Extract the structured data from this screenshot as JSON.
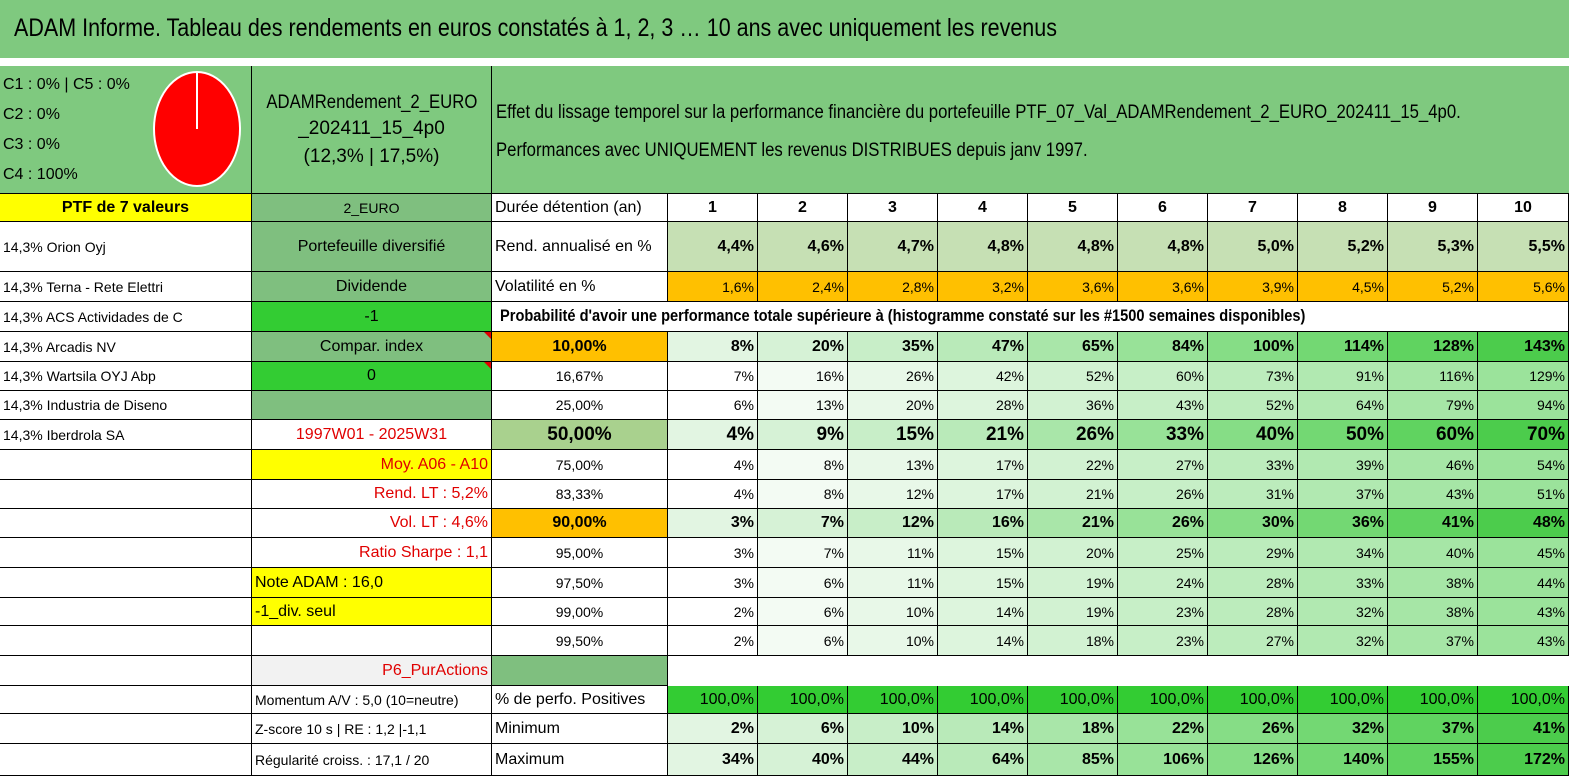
{
  "title": "ADAM Informe. Tableau des rendements en euros constatés à 1, 2, 3 … 10 ans avec uniquement les revenus",
  "pie": {
    "legend": [
      "C1 : 0% | C5 : 0%",
      "C2 : 0%",
      "C3 : 0%",
      "C4 : 100%"
    ],
    "slices": [
      {
        "share": 1.0,
        "color": "#ff0000"
      }
    ]
  },
  "fund": {
    "name_line1": "ADAMRendement_2_EURO",
    "name_line2": "_202411_15_4p0",
    "stats": "(12,3% | 17,5%)"
  },
  "header": {
    "line1": "Effet du lissage temporel sur la performance financière du portefeuille PTF_07_Val_ADAMRendement_2_EURO_202411_15_4p0.",
    "line2": "Performances avec UNIQUEMENT les revenus DISTRIBUES depuis janv 1997."
  },
  "colors": {
    "green_header": "#7fc97f",
    "yellow": "#ffff00",
    "orange": "#ffc000",
    "bright_green": "#33cc33",
    "grey_green": "#7fbf7f",
    "red_text": "#e00000"
  },
  "portfolio_label": "PTF de 7 valeurs",
  "holdings": [
    "14,3% Orion Oyj",
    "14,3% Terna - Rete Elettri",
    "14,3% ACS Actividades de C",
    "14,3% Arcadis NV",
    "14,3% Wartsila OYJ Abp",
    "14,3% Industria de Diseno",
    "14,3% Iberdrola SA"
  ],
  "mid": {
    "code": "2_EURO",
    "type": "Portefeuille diversifié",
    "income": "Dividende",
    "m1": "-1",
    "compar": "Compar. index",
    "zero": "0",
    "period": "1997W01 - 2025W31",
    "moy": "Moy. A06 - A10",
    "rend_lt": "Rend. LT : 5,2%",
    "vol_lt": "Vol. LT : 4,6%",
    "sharpe": "Ratio Sharpe : 1,1",
    "note": "Note ADAM : 16,0",
    "div": "-1_div. seul",
    "pur": "P6_PurActions",
    "momentum": "Momentum A/V : 5,0 (10=neutre)",
    "zscore": "Z-score 10 s | RE : 1,2 |-1,1",
    "regularite": "Régularité croiss. : 17,1 / 20"
  },
  "table": {
    "duration_label": "Durée détention (an)",
    "years": [
      "1",
      "2",
      "3",
      "4",
      "5",
      "6",
      "7",
      "8",
      "9",
      "10"
    ],
    "rend_label": "Rend. annualisé en %",
    "rend": [
      "4,4%",
      "4,6%",
      "4,7%",
      "4,8%",
      "4,8%",
      "4,8%",
      "5,0%",
      "5,2%",
      "5,3%",
      "5,5%"
    ],
    "vol_label": "Volatilité en %",
    "vol": [
      "1,6%",
      "2,4%",
      "2,8%",
      "3,2%",
      "3,6%",
      "3,6%",
      "3,9%",
      "4,5%",
      "5,2%",
      "5,6%"
    ],
    "prob_title": "Probabilité d'avoir une performance totale supérieure à (histogramme constaté sur les #1500 semaines disponibles)",
    "quantiles": [
      {
        "p": "10,00%",
        "vals": [
          "8%",
          "20%",
          "35%",
          "47%",
          "65%",
          "84%",
          "100%",
          "114%",
          "128%",
          "143%"
        ]
      },
      {
        "p": "16,67%",
        "vals": [
          "7%",
          "16%",
          "26%",
          "42%",
          "52%",
          "60%",
          "73%",
          "91%",
          "116%",
          "129%"
        ]
      },
      {
        "p": "25,00%",
        "vals": [
          "6%",
          "13%",
          "20%",
          "28%",
          "36%",
          "43%",
          "52%",
          "64%",
          "79%",
          "94%"
        ]
      },
      {
        "p": "50,00%",
        "vals": [
          "4%",
          "9%",
          "15%",
          "21%",
          "26%",
          "33%",
          "40%",
          "50%",
          "60%",
          "70%"
        ]
      },
      {
        "p": "75,00%",
        "vals": [
          "4%",
          "8%",
          "13%",
          "17%",
          "22%",
          "27%",
          "33%",
          "39%",
          "46%",
          "54%"
        ]
      },
      {
        "p": "83,33%",
        "vals": [
          "4%",
          "8%",
          "12%",
          "17%",
          "21%",
          "26%",
          "31%",
          "37%",
          "43%",
          "51%"
        ]
      },
      {
        "p": "90,00%",
        "vals": [
          "3%",
          "7%",
          "12%",
          "16%",
          "21%",
          "26%",
          "30%",
          "36%",
          "41%",
          "48%"
        ]
      },
      {
        "p": "95,00%",
        "vals": [
          "3%",
          "7%",
          "11%",
          "15%",
          "20%",
          "25%",
          "29%",
          "34%",
          "40%",
          "45%"
        ]
      },
      {
        "p": "97,50%",
        "vals": [
          "3%",
          "6%",
          "11%",
          "15%",
          "19%",
          "24%",
          "28%",
          "33%",
          "38%",
          "44%"
        ]
      },
      {
        "p": "99,00%",
        "vals": [
          "2%",
          "6%",
          "10%",
          "14%",
          "19%",
          "23%",
          "28%",
          "32%",
          "38%",
          "43%"
        ]
      },
      {
        "p": "99,50%",
        "vals": [
          "2%",
          "6%",
          "10%",
          "14%",
          "18%",
          "23%",
          "27%",
          "32%",
          "37%",
          "43%"
        ]
      }
    ],
    "pos_label": "% de perfo. Positives",
    "pos": [
      "100,0%",
      "100,0%",
      "100,0%",
      "100,0%",
      "100,0%",
      "100,0%",
      "100,0%",
      "100,0%",
      "100,0%",
      "100,0%"
    ],
    "min_label": "Minimum",
    "min": [
      "2%",
      "6%",
      "10%",
      "14%",
      "18%",
      "22%",
      "26%",
      "32%",
      "37%",
      "41%"
    ],
    "max_label": "Maximum",
    "max": [
      "34%",
      "40%",
      "44%",
      "64%",
      "85%",
      "106%",
      "126%",
      "140%",
      "155%",
      "172%"
    ]
  }
}
